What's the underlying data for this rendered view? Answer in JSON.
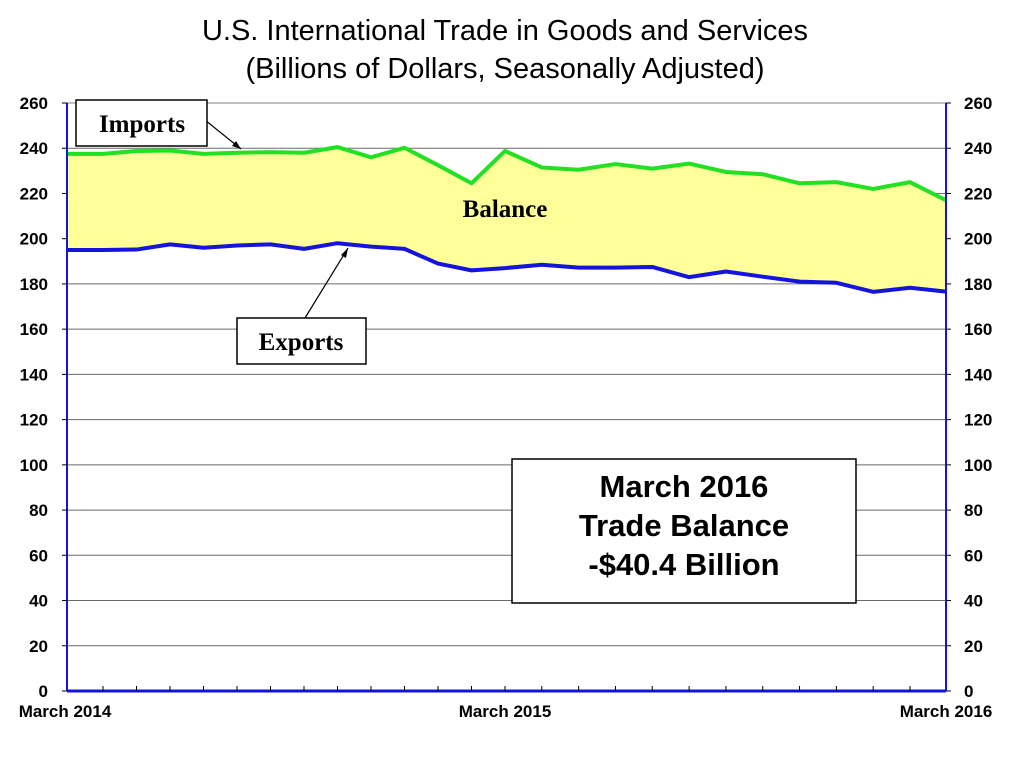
{
  "chart_data": {
    "type": "area",
    "title": "U.S. International Trade in Goods and Services",
    "subtitle": "(Billions of Dollars, Seasonally Adjusted)",
    "x": [
      "March 2014",
      "April 2014",
      "May 2014",
      "June 2014",
      "July 2014",
      "August 2014",
      "September 2014",
      "October 2014",
      "November 2014",
      "December 2014",
      "January 2015",
      "February 2015",
      "March 2015",
      "April 2015",
      "May 2015",
      "June 2015",
      "July 2015",
      "August 2015",
      "September 2015",
      "October 2015",
      "November 2015",
      "December 2015",
      "January 2016",
      "February 2016",
      "March 2016"
    ],
    "xtick_labels": [
      {
        "index": 0,
        "label": "March 2014"
      },
      {
        "index": 12,
        "label": "March 2015"
      },
      {
        "index": 24,
        "label": "March 2016"
      }
    ],
    "series": [
      {
        "name": "Imports",
        "color": "#22e022",
        "values": [
          237.5,
          238.8,
          239.0,
          237.5,
          238.0,
          238.3,
          238.0,
          240.5,
          236.0,
          240.2,
          232.5,
          224.5,
          238.8,
          231.5,
          230.5,
          233.0,
          231.0,
          233.2,
          229.5,
          228.5,
          224.5,
          225.0,
          222.0,
          225.0,
          217.0
        ]
      },
      {
        "name": "Exports",
        "color": "#1414dc",
        "values": [
          195.0,
          195.2,
          197.5,
          196.0,
          197.0,
          197.5,
          195.5,
          198.0,
          196.5,
          195.5,
          189.0,
          186.0,
          187.0,
          188.5,
          187.2,
          187.2,
          187.5,
          183.0,
          185.5,
          183.2,
          181.0,
          180.5,
          176.5,
          178.3,
          176.6
        ]
      }
    ],
    "fill_label": "Balance",
    "fill_color": "#ffff99",
    "ylim": [
      0,
      260
    ],
    "yticks": [
      0,
      20,
      40,
      60,
      80,
      100,
      120,
      140,
      160,
      180,
      200,
      220,
      240,
      260
    ],
    "grid": true,
    "annotations": {
      "imports_callout": "Imports",
      "exports_callout": "Exports",
      "balance_label": "Balance",
      "box_lines": [
        "March 2016",
        "Trade Balance",
        "-$40.4 Billion"
      ]
    }
  }
}
